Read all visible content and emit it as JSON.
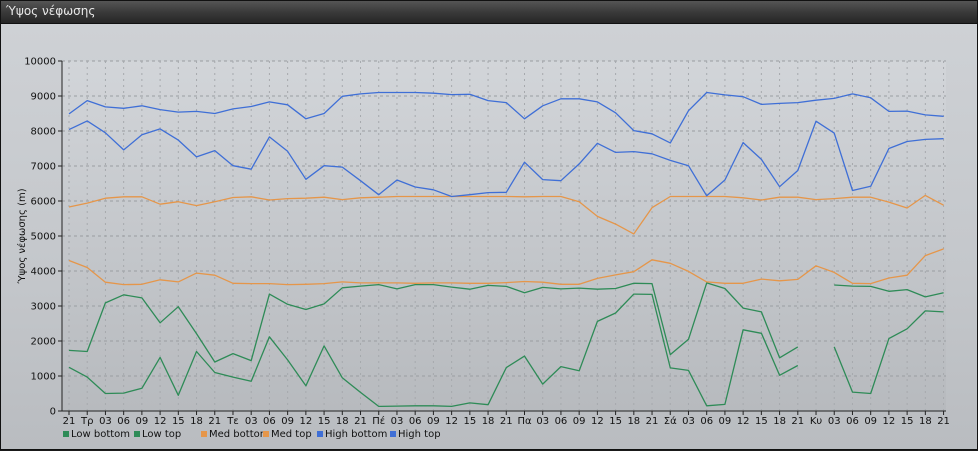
{
  "window": {
    "title": "Ύψος νέφωσης"
  },
  "chart_data": {
    "type": "line",
    "title": "",
    "ylabel": "Ύψος νέφωσης (m)",
    "xlabel": "",
    "ylim": [
      0,
      10000
    ],
    "yticks": [
      0,
      1000,
      2000,
      3000,
      4000,
      5000,
      6000,
      7000,
      8000,
      9000,
      10000
    ],
    "grid": true,
    "legend": "bottom-left",
    "categories": [
      "21",
      "Τρ",
      "03",
      "06",
      "09",
      "12",
      "15",
      "18",
      "21",
      "Τε",
      "03",
      "06",
      "09",
      "12",
      "15",
      "18",
      "21",
      "Πέ",
      "03",
      "06",
      "09",
      "12",
      "15",
      "18",
      "21",
      "Πα",
      "03",
      "06",
      "09",
      "12",
      "15",
      "18",
      "21",
      "Σά",
      "03",
      "06",
      "09",
      "12",
      "15",
      "18",
      "21",
      "Κυ",
      "03",
      "06",
      "09",
      "12",
      "15",
      "18",
      "21"
    ],
    "series": [
      {
        "name": "Low bottom",
        "color": "#2e8b57",
        "values": [
          1250,
          970,
          500,
          510,
          650,
          1530,
          450,
          1700,
          1100,
          970,
          850,
          2120,
          1460,
          720,
          1860,
          950,
          530,
          130,
          140,
          150,
          150,
          130,
          230,
          180,
          1240,
          1570,
          770,
          1270,
          1150,
          2560,
          2800,
          3340,
          3330,
          1230,
          1160,
          150,
          190,
          2320,
          2220,
          1020,
          1300,
          null,
          1830,
          540,
          500,
          2070,
          2350,
          2860,
          2830
        ]
      },
      {
        "name": "Low top",
        "color": "#2e8b57",
        "values": [
          1730,
          1700,
          3090,
          3320,
          3230,
          2520,
          2980,
          2210,
          1400,
          1640,
          1440,
          3340,
          3050,
          2900,
          3060,
          3520,
          3570,
          3610,
          3490,
          3610,
          3610,
          3540,
          3480,
          3590,
          3560,
          3380,
          3530,
          3490,
          3510,
          3480,
          3500,
          3650,
          3640,
          1610,
          2050,
          3660,
          3500,
          2940,
          2830,
          1520,
          1830,
          null,
          3600,
          3570,
          3560,
          3420,
          3470,
          3260,
          3380
        ]
      },
      {
        "name": "Med bottom",
        "color": "#e5964a",
        "values": [
          4300,
          4100,
          3680,
          3610,
          3620,
          3750,
          3690,
          3940,
          3880,
          3650,
          3640,
          3640,
          3610,
          3620,
          3640,
          3690,
          3660,
          3660,
          3660,
          3650,
          3660,
          3660,
          3650,
          3650,
          3670,
          3700,
          3680,
          3620,
          3620,
          3790,
          3890,
          3980,
          4320,
          4220,
          3990,
          3690,
          3650,
          3650,
          3770,
          3720,
          3760,
          4150,
          3960,
          3650,
          3640,
          3800,
          3880,
          4440,
          4630
        ]
      },
      {
        "name": "Med top",
        "color": "#e5964a",
        "values": [
          5830,
          5940,
          6080,
          6120,
          6120,
          5910,
          5980,
          5870,
          5980,
          6100,
          6120,
          6030,
          6070,
          6080,
          6110,
          6040,
          6090,
          6110,
          6130,
          6130,
          6130,
          6130,
          6130,
          6130,
          6130,
          6120,
          6130,
          6130,
          5980,
          5560,
          5340,
          5060,
          5810,
          6130,
          6130,
          6130,
          6130,
          6090,
          6030,
          6110,
          6110,
          6040,
          6070,
          6110,
          6110,
          5970,
          5800,
          6160,
          5880
        ]
      },
      {
        "name": "High bottom",
        "color": "#3f6fd6",
        "values": [
          8040,
          8290,
          7950,
          7460,
          7890,
          8060,
          7740,
          7260,
          7440,
          7010,
          6910,
          7830,
          7420,
          6620,
          7010,
          6970,
          6580,
          6180,
          6600,
          6400,
          6320,
          6130,
          6180,
          6240,
          6250,
          7110,
          6610,
          6580,
          7060,
          7650,
          7390,
          7410,
          7350,
          7160,
          7010,
          6150,
          6600,
          7670,
          7190,
          6410,
          6870,
          8280,
          7940,
          6300,
          6420,
          7500,
          7700,
          7760,
          7780
        ]
      },
      {
        "name": "High top",
        "color": "#3f6fd6",
        "values": [
          8490,
          8870,
          8690,
          8650,
          8720,
          8610,
          8540,
          8560,
          8500,
          8630,
          8700,
          8830,
          8750,
          8350,
          8500,
          8990,
          9060,
          9100,
          9100,
          9100,
          9080,
          9040,
          9050,
          8870,
          8810,
          8350,
          8720,
          8920,
          8920,
          8830,
          8520,
          8010,
          7920,
          7660,
          8580,
          9100,
          9030,
          8980,
          8760,
          8790,
          8810,
          8880,
          8930,
          9060,
          8950,
          8560,
          8570,
          8460,
          8420
        ]
      }
    ]
  }
}
